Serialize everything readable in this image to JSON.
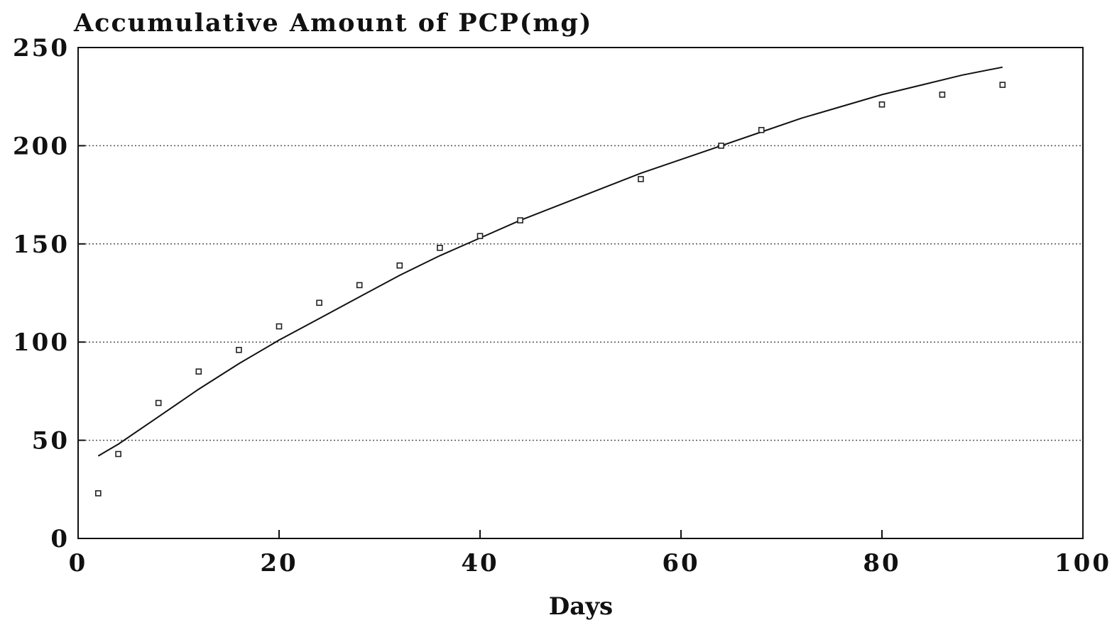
{
  "chart_data": {
    "type": "scatter",
    "title": "Accumulative Amount of PCP(mg)",
    "xlabel": "Days",
    "ylabel": "",
    "xlim": [
      0,
      100
    ],
    "ylim": [
      0,
      250
    ],
    "xticks": [
      0,
      20,
      40,
      60,
      80,
      100
    ],
    "yticks": [
      0,
      50,
      100,
      150,
      200,
      250
    ],
    "xtick_labels": [
      "0",
      "20",
      "40",
      "60",
      "80",
      "100"
    ],
    "ytick_labels": [
      "0",
      "50",
      "100",
      "150",
      "200",
      "250"
    ],
    "grid": "horizontal dotted",
    "legend": "none",
    "series": [
      {
        "kind": "points",
        "marker": "small-square",
        "x": [
          2,
          4,
          8,
          12,
          16,
          20,
          24,
          28,
          32,
          36,
          40,
          44,
          56,
          64,
          68,
          80,
          86,
          92
        ],
        "y": [
          23,
          43,
          69,
          85,
          96,
          108,
          120,
          129,
          139,
          148,
          154,
          162,
          183,
          200,
          208,
          221,
          226,
          231
        ]
      },
      {
        "kind": "fitted-line",
        "x": [
          2,
          4,
          8,
          12,
          16,
          20,
          24,
          28,
          32,
          36,
          40,
          44,
          48,
          52,
          56,
          60,
          64,
          68,
          72,
          76,
          80,
          84,
          88,
          92
        ],
        "y": [
          42,
          48,
          62,
          76,
          89,
          101,
          112,
          123,
          134,
          144,
          153,
          162,
          170,
          178,
          186,
          193,
          200,
          207,
          214,
          220,
          226,
          231,
          236,
          240
        ]
      }
    ]
  }
}
